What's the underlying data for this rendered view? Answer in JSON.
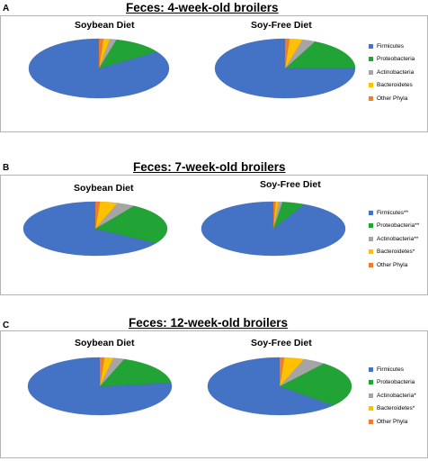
{
  "colors": {
    "Firmicutes": "#4472c4",
    "Proteobacteria": "#22a336",
    "Actinobacteria": "#a5a5a5",
    "Bacteroidetes": "#ffc000",
    "Other Phyla": "#ed7d31"
  },
  "panels": [
    {
      "letter": "A",
      "title": "Feces: 4-week-old broilers",
      "legend": [
        "Firmicutes",
        "Proteobacteria",
        "Actinobacteria",
        "Bacteroidetes",
        "Other Phyla"
      ]
    },
    {
      "letter": "B",
      "title": "Feces: 7-week-old broilers",
      "legend": [
        "Firmicutes**",
        "Proteobacteria**",
        "Actinobacteria**",
        "Bacteroidetes*",
        "Other Phyla"
      ]
    },
    {
      "letter": "C",
      "title": "Feces: 12-week-old broilers",
      "legend": [
        "Firmicutes",
        "Proteobacteria",
        "Actinobacteria*",
        "Bacteroidetes*",
        "Other Phyla"
      ]
    }
  ],
  "chart_data": [
    {
      "type": "pie",
      "panel": "A",
      "title": "Soybean Diet",
      "labels": [
        "Firmicutes",
        "Proteobacteria",
        "Actinobacteria",
        "Bacteroidetes",
        "Other Phyla"
      ],
      "values": [
        84.5,
        11.5,
        1.5,
        1.5,
        1.0
      ]
    },
    {
      "type": "pie",
      "panel": "A",
      "title": "Soy-Free Diet",
      "labels": [
        "Firmicutes",
        "Proteobacteria",
        "Actinobacteria",
        "Bacteroidetes",
        "Other Phyla"
      ],
      "values": [
        75,
        18,
        3,
        3,
        1
      ]
    },
    {
      "type": "pie",
      "panel": "B",
      "title": "Soybean Diet",
      "labels": [
        "Firmicutes",
        "Proteobacteria",
        "Actinobacteria",
        "Bacteroidetes",
        "Other Phyla"
      ],
      "values": [
        66,
        25,
        4,
        4,
        1
      ]
    },
    {
      "type": "pie",
      "panel": "B",
      "title": "Soy-Free Diet",
      "labels": [
        "Firmicutes",
        "Proteobacteria",
        "Actinobacteria",
        "Bacteroidetes",
        "Other Phyla"
      ],
      "values": [
        93,
        5,
        0.8,
        0.7,
        0.5
      ]
    },
    {
      "type": "pie",
      "panel": "C",
      "title": "Soybean Diet",
      "labels": [
        "Firmicutes",
        "Proteobacteria",
        "Actinobacteria",
        "Bacteroidetes",
        "Other Phyla"
      ],
      "values": [
        77,
        17.5,
        2.5,
        2,
        1
      ]
    },
    {
      "type": "pie",
      "panel": "C",
      "title": "Soy-Free Diet",
      "labels": [
        "Firmicutes",
        "Proteobacteria",
        "Actinobacteria",
        "Bacteroidetes",
        "Other Phyla"
      ],
      "values": [
        63.5,
        26,
        5,
        4.5,
        1
      ]
    }
  ]
}
